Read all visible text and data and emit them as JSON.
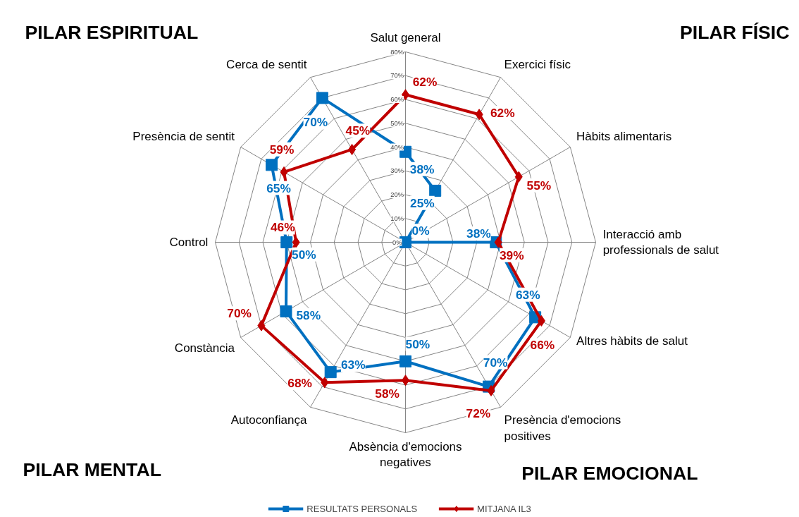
{
  "chart_data": {
    "type": "radar",
    "categories": [
      "Salut general",
      "Exercici físic",
      "Hàbits alimentaris",
      "Interacció amb\nprofessionals de salut",
      "Altres hàbits de salut",
      "Presència d'emocions\npositives",
      "Absència d'emocions\nnegatives",
      "Autoconfiança",
      "Constància",
      "Control",
      "Presència de sentit",
      "Cerca de sentit"
    ],
    "series": [
      {
        "name": "RESULTATS PERSONALS",
        "color": "#0070c0",
        "marker": "square",
        "values": [
          38,
          25,
          0,
          38,
          63,
          70,
          50,
          63,
          58,
          50,
          65,
          70
        ],
        "value_labels": [
          "38%",
          "25%",
          "0%",
          "38%",
          "63%",
          "70%",
          "50%",
          "63%",
          "58%",
          "50%",
          "65%",
          "70%"
        ]
      },
      {
        "name": "MITJANA IL3",
        "color": "#c00000",
        "marker": "diamond",
        "values": [
          62,
          62,
          55,
          39,
          66,
          72,
          58,
          68,
          70,
          46,
          59,
          45
        ],
        "value_labels": [
          "62%",
          "62%",
          "55%",
          "39%",
          "66%",
          "72%",
          "58%",
          "68%",
          "70%",
          "46%",
          "59%",
          "45%"
        ]
      }
    ],
    "ylim": [
      0,
      80
    ],
    "yticks": [
      {
        "value": 0,
        "label": "0%"
      },
      {
        "value": 10,
        "label": "10%"
      },
      {
        "value": 20,
        "label": "20%"
      },
      {
        "value": 30,
        "label": "30%"
      },
      {
        "value": 40,
        "label": "40%"
      },
      {
        "value": 50,
        "label": "50%"
      },
      {
        "value": 60,
        "label": "60%"
      },
      {
        "value": 70,
        "label": "70%"
      },
      {
        "value": 80,
        "label": "80%"
      }
    ],
    "grid": true,
    "legend": "bottom",
    "annotations": [
      "PILAR ESPIRITUAL",
      "PILAR FÍSIC",
      "PILAR MENTAL",
      "PILAR EMOCIONAL"
    ]
  }
}
